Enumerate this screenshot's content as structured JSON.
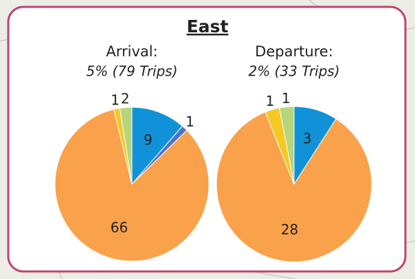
{
  "title": "East",
  "chart_data": [
    {
      "type": "pie",
      "title": "Arrival:",
      "subtitle": "5% (79 Trips)",
      "values": [
        9,
        1,
        66,
        1,
        2
      ],
      "colors": [
        "#1192d8",
        "#4f72c6",
        "#f9a24b",
        "#f6c824",
        "#b7d67c"
      ]
    },
    {
      "type": "pie",
      "title": "Departure:",
      "subtitle": "2% (33 Trips)",
      "values": [
        3,
        28,
        1,
        1
      ],
      "colors": [
        "#1192d8",
        "#f9a24b",
        "#f6c824",
        "#b7d67c"
      ]
    }
  ]
}
